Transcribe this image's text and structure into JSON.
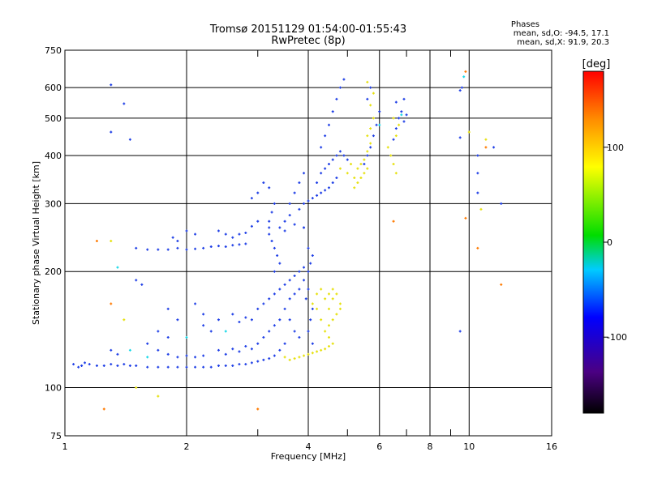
{
  "chart_data": {
    "type": "scatter",
    "title": "Tromsø 20151129 01:54:00-01:55:43",
    "subtitle": "RwPretec (8p)",
    "xlabel": "Frequency [MHz]",
    "ylabel": "Stationary phase Virtual Height [km]",
    "x_scale": "log",
    "y_scale": "log",
    "xlim": [
      1,
      16
    ],
    "ylim": [
      75,
      750
    ],
    "x_ticks": [
      1,
      2,
      4,
      6,
      8,
      10,
      16
    ],
    "x_minor_ticks": [
      3,
      5,
      7,
      9
    ],
    "y_ticks": [
      75,
      100,
      200,
      300,
      400,
      500,
      600,
      750
    ],
    "grid": true,
    "phase_stats": {
      "heading": "Phases",
      "line_o": "mean, sd,O: -94.5, 17.1",
      "line_x": "mean, sd,X:  91.9, 20.3"
    },
    "colorbar": {
      "label": "[deg]",
      "range": [
        -180,
        180
      ],
      "ticks": [
        {
          "value": 100,
          "label": "100"
        },
        {
          "value": 0,
          "label": "0"
        },
        {
          "value": -100,
          "label": "-100"
        }
      ]
    },
    "series": [
      {
        "mode": "O",
        "phase": -94.5,
        "color": "#1f3fe6",
        "points": [
          [
            1.05,
            115
          ],
          [
            1.08,
            113
          ],
          [
            1.1,
            114
          ],
          [
            1.12,
            116
          ],
          [
            1.15,
            115
          ],
          [
            1.2,
            114
          ],
          [
            1.25,
            114
          ],
          [
            1.3,
            115
          ],
          [
            1.35,
            114
          ],
          [
            1.4,
            115
          ],
          [
            1.45,
            114
          ],
          [
            1.5,
            114
          ],
          [
            1.6,
            113
          ],
          [
            1.7,
            113
          ],
          [
            1.8,
            113
          ],
          [
            1.9,
            113
          ],
          [
            2.0,
            113
          ],
          [
            2.1,
            113
          ],
          [
            2.2,
            113
          ],
          [
            2.3,
            113
          ],
          [
            2.4,
            114
          ],
          [
            2.5,
            114
          ],
          [
            2.6,
            114
          ],
          [
            2.7,
            115
          ],
          [
            2.8,
            115
          ],
          [
            2.9,
            116
          ],
          [
            3.0,
            117
          ],
          [
            3.1,
            118
          ],
          [
            3.2,
            119
          ],
          [
            3.3,
            121
          ],
          [
            1.3,
            125
          ],
          [
            1.35,
            122
          ],
          [
            1.6,
            130
          ],
          [
            1.7,
            125
          ],
          [
            1.8,
            122
          ],
          [
            1.9,
            120
          ],
          [
            2.0,
            121
          ],
          [
            2.1,
            120
          ],
          [
            2.2,
            121
          ],
          [
            2.4,
            125
          ],
          [
            2.5,
            122
          ],
          [
            2.6,
            126
          ],
          [
            2.7,
            124
          ],
          [
            2.8,
            128
          ],
          [
            2.9,
            126
          ],
          [
            3.0,
            130
          ],
          [
            3.1,
            135
          ],
          [
            3.2,
            140
          ],
          [
            3.3,
            145
          ],
          [
            3.4,
            150
          ],
          [
            1.7,
            140
          ],
          [
            1.8,
            135
          ],
          [
            2.2,
            145
          ],
          [
            2.3,
            140
          ],
          [
            2.4,
            150
          ],
          [
            2.6,
            155
          ],
          [
            2.7,
            148
          ],
          [
            2.8,
            152
          ],
          [
            2.9,
            150
          ],
          [
            3.0,
            160
          ],
          [
            3.1,
            165
          ],
          [
            3.2,
            170
          ],
          [
            3.3,
            175
          ],
          [
            3.4,
            180
          ],
          [
            3.5,
            185
          ],
          [
            3.6,
            190
          ],
          [
            3.7,
            195
          ],
          [
            3.8,
            200
          ],
          [
            3.9,
            205
          ],
          [
            3.5,
            160
          ],
          [
            3.6,
            150
          ],
          [
            3.7,
            140
          ],
          [
            3.8,
            135
          ],
          [
            3.5,
            130
          ],
          [
            3.4,
            125
          ],
          [
            3.6,
            170
          ],
          [
            3.7,
            175
          ],
          [
            3.8,
            180
          ],
          [
            3.9,
            190
          ],
          [
            4.0,
            200
          ],
          [
            3.3,
            200
          ],
          [
            3.4,
            210
          ],
          [
            3.35,
            220
          ],
          [
            3.3,
            230
          ],
          [
            3.25,
            240
          ],
          [
            3.2,
            250
          ],
          [
            3.2,
            270
          ],
          [
            3.25,
            285
          ],
          [
            3.3,
            300
          ],
          [
            3.2,
            260
          ],
          [
            3.5,
            255
          ],
          [
            3.7,
            265
          ],
          [
            3.9,
            260
          ],
          [
            3.6,
            280
          ],
          [
            3.8,
            290
          ],
          [
            3.9,
            300
          ],
          [
            4.0,
            305
          ],
          [
            4.1,
            310
          ],
          [
            4.2,
            315
          ],
          [
            4.3,
            320
          ],
          [
            4.4,
            325
          ],
          [
            4.5,
            330
          ],
          [
            4.6,
            340
          ],
          [
            4.7,
            350
          ],
          [
            4.2,
            340
          ],
          [
            4.3,
            360
          ],
          [
            4.4,
            370
          ],
          [
            4.5,
            380
          ],
          [
            4.6,
            390
          ],
          [
            4.7,
            400
          ],
          [
            4.8,
            410
          ],
          [
            4.9,
            400
          ],
          [
            5.0,
            390
          ],
          [
            4.3,
            420
          ],
          [
            4.4,
            450
          ],
          [
            4.5,
            480
          ],
          [
            4.6,
            520
          ],
          [
            4.7,
            560
          ],
          [
            4.8,
            600
          ],
          [
            4.9,
            630
          ],
          [
            3.4,
            260
          ],
          [
            3.5,
            270
          ],
          [
            3.6,
            300
          ],
          [
            3.7,
            320
          ],
          [
            3.8,
            340
          ],
          [
            3.9,
            360
          ],
          [
            3.0,
            320
          ],
          [
            2.9,
            310
          ],
          [
            3.1,
            340
          ],
          [
            3.2,
            330
          ],
          [
            1.5,
            230
          ],
          [
            1.6,
            228
          ],
          [
            1.7,
            228
          ],
          [
            1.8,
            228
          ],
          [
            1.9,
            230
          ],
          [
            2.0,
            228
          ],
          [
            2.1,
            229
          ],
          [
            2.2,
            230
          ],
          [
            2.3,
            232
          ],
          [
            2.4,
            233
          ],
          [
            2.5,
            232
          ],
          [
            2.6,
            234
          ],
          [
            2.7,
            235
          ],
          [
            2.8,
            236
          ],
          [
            1.85,
            245
          ],
          [
            1.9,
            240
          ],
          [
            2.0,
            255
          ],
          [
            2.1,
            250
          ],
          [
            2.4,
            255
          ],
          [
            2.5,
            250
          ],
          [
            2.6,
            245
          ],
          [
            2.7,
            250
          ],
          [
            2.8,
            252
          ],
          [
            2.9,
            262
          ],
          [
            3.0,
            270
          ],
          [
            1.55,
            185
          ],
          [
            1.8,
            160
          ],
          [
            1.9,
            150
          ],
          [
            2.1,
            165
          ],
          [
            2.2,
            155
          ],
          [
            5.5,
            380
          ],
          [
            5.6,
            400
          ],
          [
            5.7,
            420
          ],
          [
            5.8,
            450
          ],
          [
            5.9,
            480
          ],
          [
            6.0,
            520
          ],
          [
            5.6,
            560
          ],
          [
            5.7,
            600
          ],
          [
            6.5,
            440
          ],
          [
            6.6,
            470
          ],
          [
            6.7,
            500
          ],
          [
            6.8,
            520
          ],
          [
            6.9,
            490
          ],
          [
            7.0,
            510
          ],
          [
            6.6,
            550
          ],
          [
            6.9,
            560
          ],
          [
            9.5,
            590
          ],
          [
            9.6,
            600
          ],
          [
            9.5,
            445
          ],
          [
            10.5,
            400
          ],
          [
            10.5,
            360
          ],
          [
            10.5,
            320
          ],
          [
            11.5,
            420
          ],
          [
            12.0,
            300
          ],
          [
            9.5,
            140
          ],
          [
            1.3,
            610
          ],
          [
            1.4,
            545
          ],
          [
            1.3,
            460
          ],
          [
            1.45,
            440
          ],
          [
            1.5,
            190
          ],
          [
            3.9,
            260
          ],
          [
            4.0,
            230
          ],
          [
            4.1,
            220
          ],
          [
            4.05,
            210
          ],
          [
            4.0,
            180
          ],
          [
            3.95,
            170
          ],
          [
            4.1,
            160
          ],
          [
            4.05,
            150
          ],
          [
            4.0,
            140
          ],
          [
            4.1,
            130
          ]
        ]
      },
      {
        "mode": "X",
        "phase": 91.9,
        "color": "#e6e10f",
        "points": [
          [
            3.5,
            120
          ],
          [
            3.6,
            118
          ],
          [
            3.7,
            119
          ],
          [
            3.8,
            120
          ],
          [
            3.9,
            121
          ],
          [
            4.0,
            122
          ],
          [
            4.1,
            123
          ],
          [
            4.2,
            124
          ],
          [
            4.3,
            125
          ],
          [
            4.4,
            126
          ],
          [
            4.5,
            128
          ],
          [
            4.6,
            130
          ],
          [
            4.4,
            140
          ],
          [
            4.5,
            145
          ],
          [
            4.6,
            150
          ],
          [
            4.7,
            155
          ],
          [
            4.8,
            165
          ],
          [
            4.6,
            170
          ],
          [
            4.5,
            175
          ],
          [
            4.3,
            180
          ],
          [
            4.4,
            170
          ],
          [
            4.2,
            160
          ],
          [
            4.3,
            150
          ],
          [
            4.5,
            160
          ],
          [
            4.1,
            165
          ],
          [
            4.2,
            175
          ],
          [
            4.6,
            180
          ],
          [
            4.7,
            175
          ],
          [
            4.8,
            160
          ],
          [
            4.5,
            135
          ],
          [
            5.2,
            330
          ],
          [
            5.3,
            340
          ],
          [
            5.4,
            350
          ],
          [
            5.5,
            360
          ],
          [
            5.6,
            370
          ],
          [
            5.2,
            350
          ],
          [
            5.3,
            370
          ],
          [
            5.4,
            380
          ],
          [
            5.5,
            390
          ],
          [
            5.6,
            410
          ],
          [
            5.7,
            430
          ],
          [
            5.6,
            450
          ],
          [
            5.7,
            470
          ],
          [
            5.8,
            500
          ],
          [
            5.7,
            540
          ],
          [
            5.8,
            580
          ],
          [
            5.6,
            620
          ],
          [
            5.0,
            360
          ],
          [
            5.1,
            380
          ],
          [
            4.8,
            370
          ],
          [
            6.3,
            420
          ],
          [
            6.4,
            400
          ],
          [
            6.5,
            380
          ],
          [
            6.6,
            360
          ],
          [
            6.6,
            450
          ],
          [
            6.7,
            480
          ],
          [
            6.5,
            500
          ],
          [
            10.0,
            460
          ],
          [
            11.0,
            440
          ],
          [
            10.7,
            290
          ],
          [
            1.3,
            240
          ],
          [
            1.4,
            150
          ],
          [
            1.5,
            100
          ],
          [
            1.7,
            95
          ]
        ]
      },
      {
        "mode": "noise",
        "phase": 150,
        "color": "#ff7a00",
        "points": [
          [
            1.2,
            240
          ],
          [
            1.25,
            88
          ],
          [
            1.3,
            165
          ],
          [
            3.0,
            88
          ],
          [
            6.5,
            270
          ],
          [
            9.8,
            660
          ],
          [
            9.8,
            275
          ],
          [
            10.5,
            230
          ],
          [
            11.0,
            420
          ],
          [
            12.0,
            185
          ]
        ]
      },
      {
        "mode": "noise",
        "phase": -20,
        "color": "#15d8e8",
        "points": [
          [
            1.35,
            205
          ],
          [
            1.45,
            125
          ],
          [
            2.0,
            135
          ],
          [
            2.5,
            140
          ],
          [
            6.0,
            480
          ],
          [
            6.8,
            510
          ],
          [
            9.7,
            640
          ],
          [
            1.6,
            120
          ]
        ]
      }
    ]
  }
}
